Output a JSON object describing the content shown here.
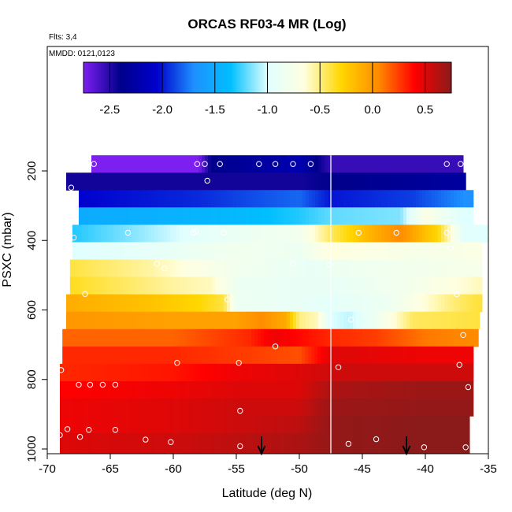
{
  "chart_data": {
    "type": "heatmap",
    "title": "ORCAS RF03-4 MR (Log)",
    "annotations": [
      "Flts: 3,4",
      "MMDD: 0121,0123"
    ],
    "xlabel": "Latitude (deg N)",
    "ylabel": "PSXC (mbar)",
    "xlim": [
      -70,
      -35
    ],
    "ylim": [
      1000,
      100
    ],
    "xticks": [
      -70,
      -65,
      -60,
      -55,
      -50,
      -45,
      -40,
      -35
    ],
    "yticks": [
      200,
      400,
      600,
      800,
      1000
    ],
    "colorbar": {
      "range": [
        -2.75,
        0.75
      ],
      "ticks": [
        -2.5,
        -2.0,
        -1.5,
        -1.0,
        -0.5,
        0.0,
        0.5
      ],
      "tick_labels": [
        "-2.5",
        "-2.0",
        "-1.5",
        "-1.0",
        "-0.5",
        "0.0",
        "0.5"
      ],
      "colors": [
        "#7d1ff0",
        "#00008b",
        "#0000cd",
        "#1e90ff",
        "#00bfff",
        "#e0ffff",
        "#ffffe0",
        "#ffd700",
        "#ff8c00",
        "#ff0000",
        "#8b1a1a"
      ]
    },
    "divider_latitude": -47.5,
    "arrow_latitudes": [
      -53,
      -41.5
    ],
    "rows": [
      {
        "p": 180,
        "x0": -66.5,
        "x1": -37,
        "nodes": [
          [
            -66.5,
            -2.75
          ],
          [
            -58,
            -2.75
          ],
          [
            -57,
            -2.4
          ],
          [
            -50,
            -2.2
          ],
          [
            -47.5,
            -2.55
          ],
          [
            -37,
            -2.55
          ]
        ]
      },
      {
        "p": 230,
        "x0": -68.5,
        "x1": -36.8,
        "nodes": [
          [
            -68.5,
            -2.45
          ],
          [
            -50,
            -2.45
          ],
          [
            -47.5,
            -2.4
          ],
          [
            -37,
            -2.3
          ]
        ]
      },
      {
        "p": 280,
        "x0": -67.5,
        "x1": -36.2,
        "nodes": [
          [
            -67.5,
            -2.05
          ],
          [
            -58,
            -1.95
          ],
          [
            -53,
            -1.85
          ],
          [
            -50,
            -1.8
          ],
          [
            -47.5,
            -2.0
          ],
          [
            -41,
            -1.9
          ],
          [
            -37,
            -1.7
          ]
        ]
      },
      {
        "p": 330,
        "x0": -67.5,
        "x1": -36.2,
        "nodes": [
          [
            -67.5,
            -1.5
          ],
          [
            -60,
            -1.45
          ],
          [
            -55,
            -1.4
          ],
          [
            -50,
            -1.3
          ],
          [
            -47.5,
            -1.2
          ],
          [
            -42,
            -1.15
          ],
          [
            -40,
            -0.7
          ],
          [
            -37,
            -1.0
          ]
        ]
      },
      {
        "p": 380,
        "x0": -68,
        "x1": -35,
        "nodes": [
          [
            -68,
            -1.3
          ],
          [
            -62,
            -1.1
          ],
          [
            -58,
            -0.95
          ],
          [
            -54,
            -0.85
          ],
          [
            -50,
            -0.8
          ],
          [
            -47.5,
            -0.45
          ],
          [
            -44,
            -0.1
          ],
          [
            -42,
            0.05
          ],
          [
            -39,
            -0.3
          ],
          [
            -37,
            -0.95
          ],
          [
            -35,
            -1.0
          ]
        ]
      },
      {
        "p": 430,
        "x0": -68,
        "x1": -35.5,
        "nodes": [
          [
            -68,
            -1.0
          ],
          [
            -60,
            -0.9
          ],
          [
            -55,
            -0.8
          ],
          [
            -50,
            -0.85
          ],
          [
            -47.5,
            -0.65
          ],
          [
            -44,
            -0.7
          ],
          [
            -40,
            -0.75
          ],
          [
            -36,
            -0.7
          ]
        ]
      },
      {
        "p": 480,
        "x0": -68.2,
        "x1": -35.5,
        "nodes": [
          [
            -68.2,
            -0.4
          ],
          [
            -62,
            -0.55
          ],
          [
            -58,
            -0.7
          ],
          [
            -55,
            -0.8
          ],
          [
            -52,
            -0.85
          ],
          [
            -49,
            -0.9
          ],
          [
            -47.5,
            -0.85
          ],
          [
            -42,
            -0.8
          ],
          [
            -36,
            -0.75
          ]
        ]
      },
      {
        "p": 530,
        "x0": -68.2,
        "x1": -35.5,
        "nodes": [
          [
            -68.2,
            -0.35
          ],
          [
            -62,
            -0.5
          ],
          [
            -60,
            -0.55
          ],
          [
            -57,
            -0.6
          ],
          [
            -55,
            -0.85
          ],
          [
            -50,
            -0.9
          ],
          [
            -47.5,
            -0.9
          ],
          [
            -42,
            -0.8
          ],
          [
            -36,
            -0.6
          ]
        ]
      },
      {
        "p": 580,
        "x0": -68.5,
        "x1": -35.5,
        "nodes": [
          [
            -68.5,
            -0.1
          ],
          [
            -62,
            -0.2
          ],
          [
            -58,
            -0.3
          ],
          [
            -56,
            -0.4
          ],
          [
            -55,
            -0.85
          ],
          [
            -50,
            -0.9
          ],
          [
            -47.5,
            -0.95
          ],
          [
            -43,
            -0.85
          ],
          [
            -38,
            -0.5
          ],
          [
            -36,
            -0.4
          ]
        ]
      },
      {
        "p": 630,
        "x0": -68.5,
        "x1": -35.7,
        "nodes": [
          [
            -68.5,
            0.0
          ],
          [
            -60,
            -0.05
          ],
          [
            -55,
            -0.05
          ],
          [
            -53,
            0.05
          ],
          [
            -51,
            -0.1
          ],
          [
            -50,
            -0.5
          ],
          [
            -48.5,
            -0.6
          ],
          [
            -47.5,
            -1.0
          ],
          [
            -46,
            -1.05
          ],
          [
            -44,
            -0.85
          ],
          [
            -41,
            -0.45
          ],
          [
            -36,
            -0.4
          ]
        ]
      },
      {
        "p": 680,
        "x0": -68.8,
        "x1": -35.8,
        "nodes": [
          [
            -68.8,
            0.15
          ],
          [
            -60,
            0.15
          ],
          [
            -54,
            0.3
          ],
          [
            -52,
            0.45
          ],
          [
            -49,
            0.35
          ],
          [
            -47.5,
            0.3
          ],
          [
            -44,
            0.25
          ],
          [
            -40,
            0.1
          ],
          [
            -36,
            0.05
          ]
        ]
      },
      {
        "p": 730,
        "x0": -68.8,
        "x1": -36.2,
        "nodes": [
          [
            -68.8,
            0.3
          ],
          [
            -60,
            0.3
          ],
          [
            -54,
            0.25
          ],
          [
            -50,
            0.2
          ],
          [
            -47.5,
            0.5
          ],
          [
            -40,
            0.45
          ],
          [
            -37,
            0.45
          ]
        ]
      },
      {
        "p": 780,
        "x0": -69,
        "x1": -36.2,
        "nodes": [
          [
            -69,
            0.3
          ],
          [
            -60,
            0.35
          ],
          [
            -55,
            0.45
          ],
          [
            -50,
            0.5
          ],
          [
            -47.5,
            0.55
          ],
          [
            -40,
            0.55
          ],
          [
            -37,
            0.55
          ]
        ]
      },
      {
        "p": 830,
        "x0": -69,
        "x1": -36.2,
        "nodes": [
          [
            -69,
            0.4
          ],
          [
            -60,
            0.45
          ],
          [
            -55,
            0.5
          ],
          [
            -50,
            0.5
          ],
          [
            -47.5,
            0.65
          ],
          [
            -40,
            0.7
          ],
          [
            -37,
            0.7
          ]
        ]
      },
      {
        "p": 880,
        "x0": -69,
        "x1": -36.2,
        "nodes": [
          [
            -69,
            0.45
          ],
          [
            -60,
            0.5
          ],
          [
            -55,
            0.55
          ],
          [
            -50,
            0.55
          ],
          [
            -47.5,
            0.7
          ],
          [
            -40,
            0.72
          ],
          [
            -37,
            0.72
          ]
        ]
      },
      {
        "p": 930,
        "x0": -69,
        "x1": -36.5,
        "nodes": [
          [
            -69,
            0.45
          ],
          [
            -60,
            0.5
          ],
          [
            -55,
            0.55
          ],
          [
            -50,
            0.6
          ],
          [
            -47.5,
            0.72
          ],
          [
            -40,
            0.75
          ],
          [
            -37,
            0.75
          ]
        ]
      },
      {
        "p": 980,
        "x0": -69,
        "x1": -36.5,
        "nodes": [
          [
            -69,
            0.5
          ],
          [
            -60,
            0.55
          ],
          [
            -55,
            0.6
          ],
          [
            -50,
            0.65
          ],
          [
            -47.5,
            0.72
          ],
          [
            -40,
            0.75
          ],
          [
            -37,
            0.75
          ]
        ]
      }
    ],
    "points": [
      [
        -66.3,
        180
      ],
      [
        -58.1,
        180
      ],
      [
        -57.5,
        180
      ],
      [
        -56.3,
        180
      ],
      [
        -53.2,
        180
      ],
      [
        -51.9,
        180
      ],
      [
        -50.5,
        180
      ],
      [
        -49.1,
        180
      ],
      [
        -38.3,
        180
      ],
      [
        -37.2,
        180
      ],
      [
        -68.1,
        248
      ],
      [
        -57.3,
        228
      ],
      [
        -63.6,
        378
      ],
      [
        -58.4,
        378
      ],
      [
        -58.2,
        375
      ],
      [
        -56.0,
        378
      ],
      [
        -45.3,
        378
      ],
      [
        -42.3,
        378
      ],
      [
        -38.3,
        378
      ],
      [
        -35.0,
        380
      ],
      [
        -67.9,
        392
      ],
      [
        -38.0,
        422
      ],
      [
        -61.3,
        467
      ],
      [
        -60.7,
        480
      ],
      [
        -47.6,
        470
      ],
      [
        -50.5,
        467
      ],
      [
        -67.0,
        554
      ],
      [
        -37.5,
        555
      ],
      [
        -55.7,
        570
      ],
      [
        -45.9,
        628
      ],
      [
        -51.9,
        705
      ],
      [
        -37.0,
        672
      ],
      [
        -59.7,
        752
      ],
      [
        -54.8,
        752
      ],
      [
        -46.9,
        765
      ],
      [
        -37.3,
        758
      ],
      [
        -68.9,
        773
      ],
      [
        -67.5,
        815
      ],
      [
        -66.6,
        815
      ],
      [
        -65.6,
        815
      ],
      [
        -64.6,
        815
      ],
      [
        -36.6,
        822
      ],
      [
        -54.7,
        890
      ],
      [
        -68.4,
        943
      ],
      [
        -66.7,
        945
      ],
      [
        -64.6,
        945
      ],
      [
        -67.4,
        965
      ],
      [
        -69.0,
        960
      ],
      [
        -62.2,
        973
      ],
      [
        -60.2,
        980
      ],
      [
        -54.7,
        992
      ],
      [
        -46.1,
        985
      ],
      [
        -43.9,
        972
      ],
      [
        -40.1,
        995
      ],
      [
        -36.8,
        995
      ]
    ]
  }
}
